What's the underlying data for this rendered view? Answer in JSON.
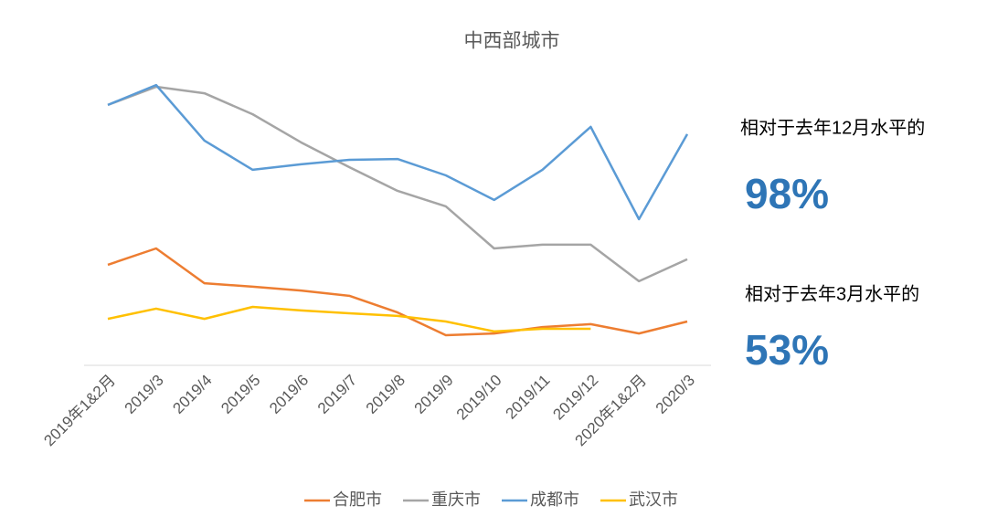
{
  "chart_data": {
    "type": "line",
    "title": "中西部城市",
    "categories": [
      "2019年1&2月",
      "2019/3",
      "2019/4",
      "2019/5",
      "2019/6",
      "2019/7",
      "2019/8",
      "2019/9",
      "2019/10",
      "2019/11",
      "2019/12",
      "2020年1&2月",
      "2020/3"
    ],
    "series": [
      {
        "name": "合肥市",
        "color": "#ed7d31",
        "values": [
          34.4,
          40,
          28.1,
          26.9,
          25.6,
          23.8,
          18.1,
          10.3,
          10.9,
          13.1,
          14.1,
          10.9,
          15
        ]
      },
      {
        "name": "重庆市",
        "color": "#a5a5a5",
        "values": [
          89.1,
          95.3,
          93.1,
          85.9,
          76.3,
          67.8,
          59.7,
          54.4,
          40,
          41.3,
          41.3,
          28.8,
          36.3
        ]
      },
      {
        "name": "成都市",
        "color": "#5b9bd5",
        "values": [
          89.1,
          95.9,
          76.9,
          66.9,
          68.8,
          70.3,
          70.6,
          65,
          56.6,
          66.9,
          81.6,
          50,
          79.1
        ]
      },
      {
        "name": "武汉市",
        "color": "#ffc000",
        "values": [
          15.9,
          19.4,
          15.9,
          20,
          18.8,
          17.8,
          16.9,
          15,
          11.6,
          12.5,
          12.5,
          null,
          null
        ]
      }
    ],
    "ylim": [
      0,
      100
    ],
    "legend": "bottom",
    "annotations": [
      "相对于去年12月水平的",
      "98%",
      "相对于去年3月水平的",
      "53%"
    ]
  }
}
